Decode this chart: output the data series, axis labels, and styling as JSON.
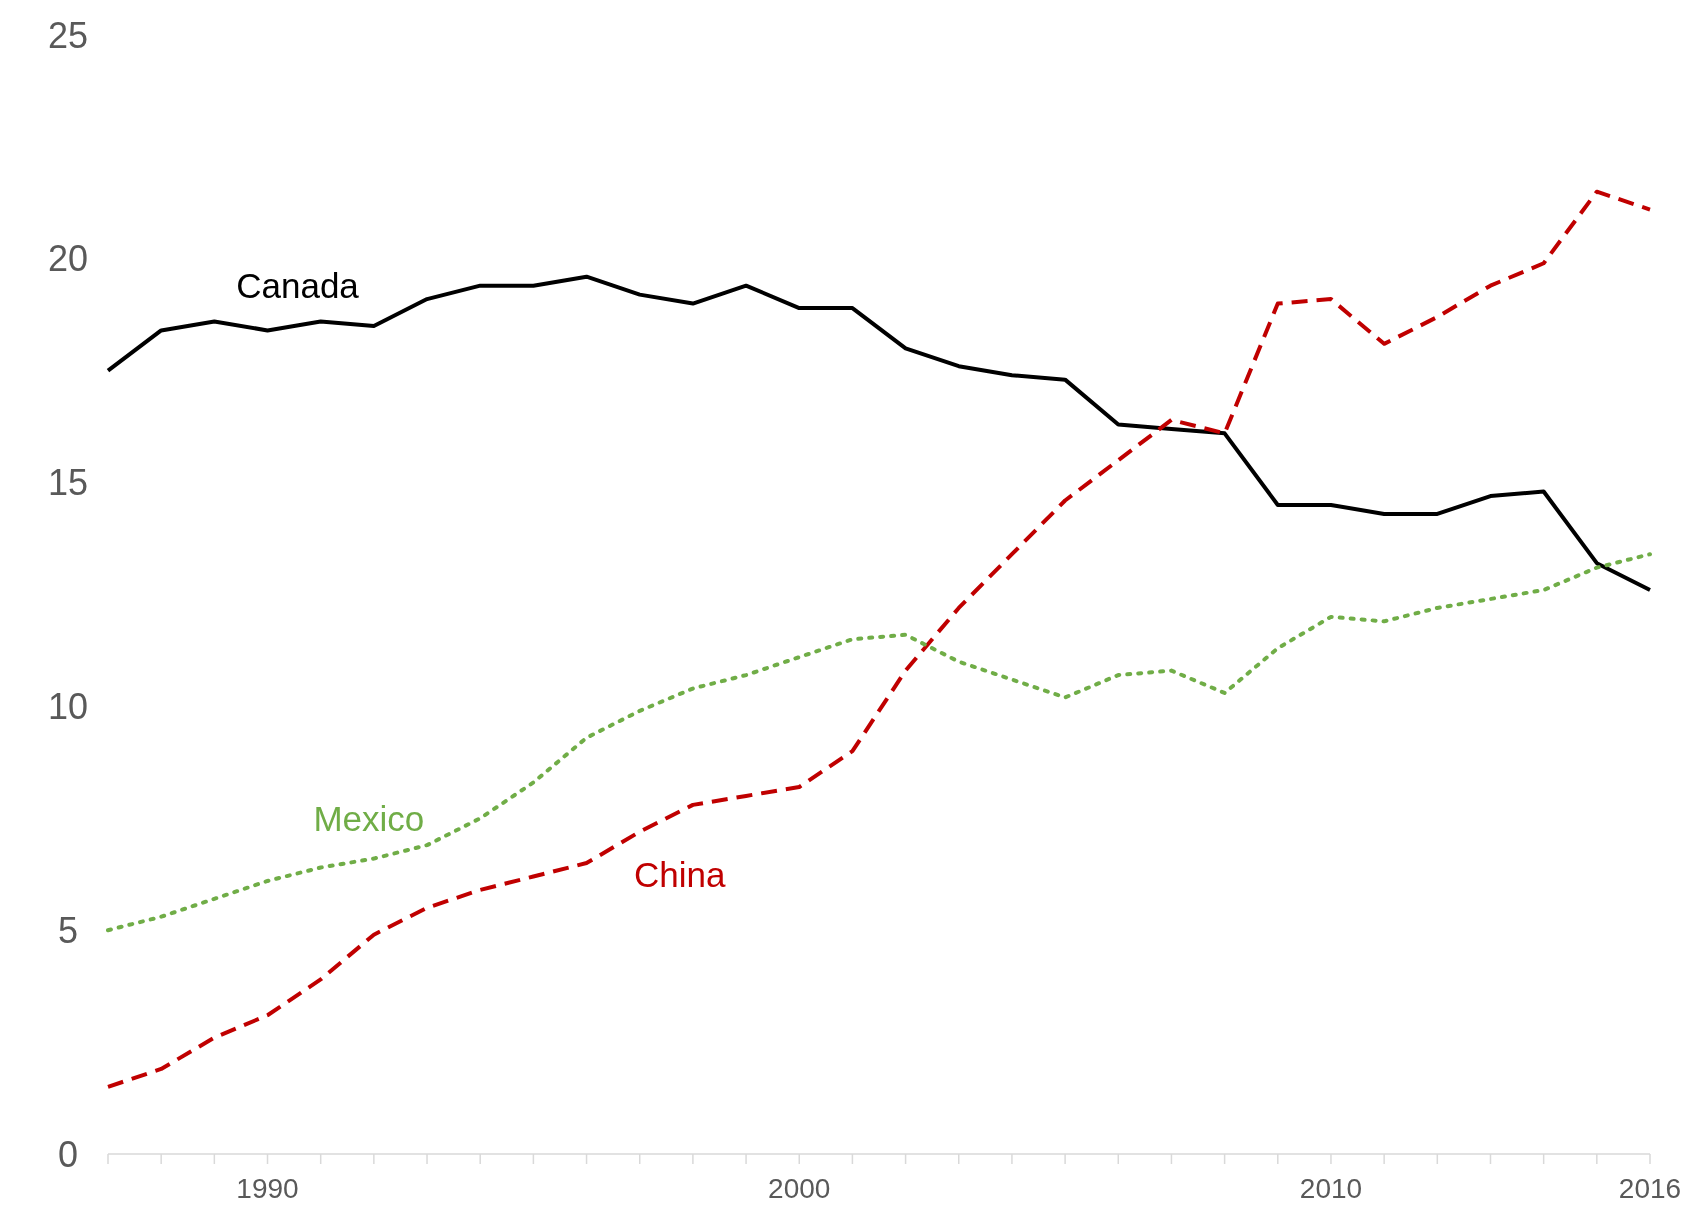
{
  "chart_data": {
    "type": "line",
    "x": [
      1987,
      1988,
      1989,
      1990,
      1991,
      1992,
      1993,
      1994,
      1995,
      1996,
      1997,
      1998,
      1999,
      2000,
      2001,
      2002,
      2003,
      2004,
      2005,
      2006,
      2007,
      2008,
      2009,
      2010,
      2011,
      2012,
      2013,
      2014,
      2015,
      2016
    ],
    "series": [
      {
        "name": "Canada",
        "color": "#000000",
        "line_style": "solid",
        "values": [
          17.5,
          18.4,
          18.6,
          18.4,
          18.6,
          18.5,
          19.1,
          19.4,
          19.4,
          19.6,
          19.2,
          19.0,
          19.4,
          18.9,
          18.9,
          18.0,
          17.6,
          17.4,
          17.3,
          16.3,
          16.2,
          16.1,
          14.5,
          14.5,
          14.3,
          14.3,
          14.7,
          14.8,
          13.2,
          12.6
        ]
      },
      {
        "name": "China",
        "color": "#c00000",
        "line_style": "dashed",
        "values": [
          1.5,
          1.9,
          2.6,
          3.1,
          3.9,
          4.9,
          5.5,
          5.9,
          6.2,
          6.5,
          7.2,
          7.8,
          8.0,
          8.2,
          9.0,
          10.8,
          12.2,
          13.4,
          14.6,
          15.5,
          16.4,
          16.1,
          19.0,
          19.1,
          18.1,
          18.7,
          19.4,
          19.9,
          21.5,
          21.1
        ]
      },
      {
        "name": "Mexico",
        "color": "#70ad47",
        "line_style": "dotted",
        "values": [
          5.0,
          5.3,
          5.7,
          6.1,
          6.4,
          6.6,
          6.9,
          7.5,
          8.3,
          9.3,
          9.9,
          10.4,
          10.7,
          11.1,
          11.5,
          11.6,
          11.0,
          10.6,
          10.2,
          10.7,
          10.8,
          10.3,
          11.3,
          12.0,
          11.9,
          12.2,
          12.4,
          12.6,
          13.1,
          13.4
        ]
      }
    ],
    "xlim": [
      1987,
      2016
    ],
    "xticks": [
      {
        "value": 1987,
        "label": null
      },
      {
        "value": 1988,
        "label": null
      },
      {
        "value": 1989,
        "label": null
      },
      1990,
      {
        "value": 1991,
        "label": null
      },
      {
        "value": 1992,
        "label": null
      },
      {
        "value": 1993,
        "label": null
      },
      {
        "value": 1994,
        "label": null
      },
      {
        "value": 1995,
        "label": null
      },
      {
        "value": 1996,
        "label": null
      },
      {
        "value": 1997,
        "label": null
      },
      {
        "value": 1998,
        "label": null
      },
      {
        "value": 1999,
        "label": null
      },
      2000,
      {
        "value": 2001,
        "label": null
      },
      {
        "value": 2002,
        "label": null
      },
      {
        "value": 2003,
        "label": null
      },
      {
        "value": 2004,
        "label": null
      },
      {
        "value": 2005,
        "label": null
      },
      {
        "value": 2006,
        "label": null
      },
      {
        "value": 2007,
        "label": null
      },
      {
        "value": 2008,
        "label": null
      },
      {
        "value": 2009,
        "label": null
      },
      2010,
      {
        "value": 2011,
        "label": null
      },
      {
        "value": 2012,
        "label": null
      },
      {
        "value": 2013,
        "label": null
      },
      {
        "value": 2014,
        "label": null
      },
      {
        "value": 2015,
        "label": null
      },
      2016
    ],
    "ylim": [
      0,
      25
    ],
    "yticks": [
      0,
      5,
      10,
      15,
      20,
      25
    ],
    "grid": false,
    "marker": "none"
  }
}
